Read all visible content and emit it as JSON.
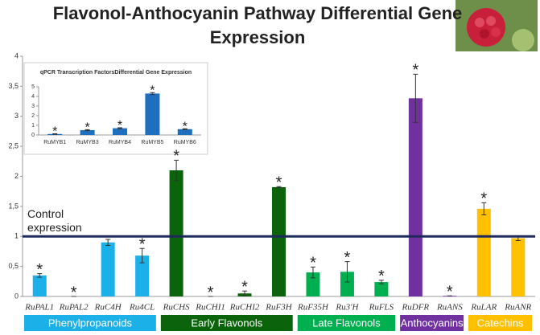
{
  "chart_data": [
    {
      "type": "bar",
      "title": "Flavonol-Anthocyanin Pathway Differential Gene Expression",
      "categories": [
        "RuPAL1",
        "RuPAL2",
        "RuC4H",
        "Ru4CL",
        "RuCHS",
        "RuCHI1",
        "RuCHI2",
        "RuF3H",
        "RuF35H",
        "Ru3'H",
        "RuFLS",
        "RuDFR",
        "RuANS",
        "RuLAR",
        "RuANR"
      ],
      "values": [
        0.35,
        0,
        0.9,
        0.68,
        2.1,
        0,
        0.05,
        1.82,
        0.4,
        0.41,
        0.24,
        3.3,
        0.01,
        1.46,
        0.97
      ],
      "errors": [
        0.03,
        0,
        0.05,
        0.12,
        0.17,
        0,
        0.04,
        0.01,
        0.09,
        0.17,
        0.03,
        0.4,
        0,
        0.1,
        0.04
      ],
      "significance": [
        "*",
        "*",
        null,
        "*",
        "*",
        "*",
        "*",
        "*",
        "*",
        "*",
        "*",
        "*",
        "*",
        "*",
        null
      ],
      "groups": [
        {
          "label": "Phenylpropanoids",
          "color": "#1cb0e8",
          "count": 4
        },
        {
          "label": "Early Flavonols",
          "color": "#0b640b",
          "count": 4
        },
        {
          "label": "Late Flavonols",
          "color": "#00b050",
          "count": 3
        },
        {
          "label": "Anthocyanins",
          "color": "#7030a0",
          "count": 2
        },
        {
          "label": "Catechins",
          "color": "#ffc000",
          "count": 2
        }
      ],
      "control": {
        "value": 1,
        "label": "Control expression",
        "color": "#1f2a5c"
      },
      "ylim": [
        0,
        4
      ],
      "yticks": [
        0,
        {
          "value": 0.5,
          "label": "0,5"
        },
        1,
        {
          "value": 1.5,
          "label": "1,5"
        },
        2,
        {
          "value": 2.5,
          "label": "2,5"
        },
        3,
        {
          "value": 3.5,
          "label": "3,5"
        },
        4
      ]
    },
    {
      "type": "bar",
      "title": "qPCR Transcription FactorsDifferential Gene Expression",
      "categories": [
        "RuMYB1",
        "RuMYB3",
        "RuMYB4",
        "RuMYB5",
        "RuMYB6"
      ],
      "values": [
        0.1,
        0.5,
        0.7,
        4.3,
        0.6
      ],
      "errors": [
        0.03,
        0.05,
        0.05,
        0.1,
        0.05
      ],
      "significance": [
        "*",
        "*",
        "*",
        "*",
        "*"
      ],
      "color": "#1f6fbf",
      "ylim": [
        0,
        5
      ],
      "yticks": [
        0,
        1,
        2,
        3,
        4,
        5
      ]
    }
  ]
}
